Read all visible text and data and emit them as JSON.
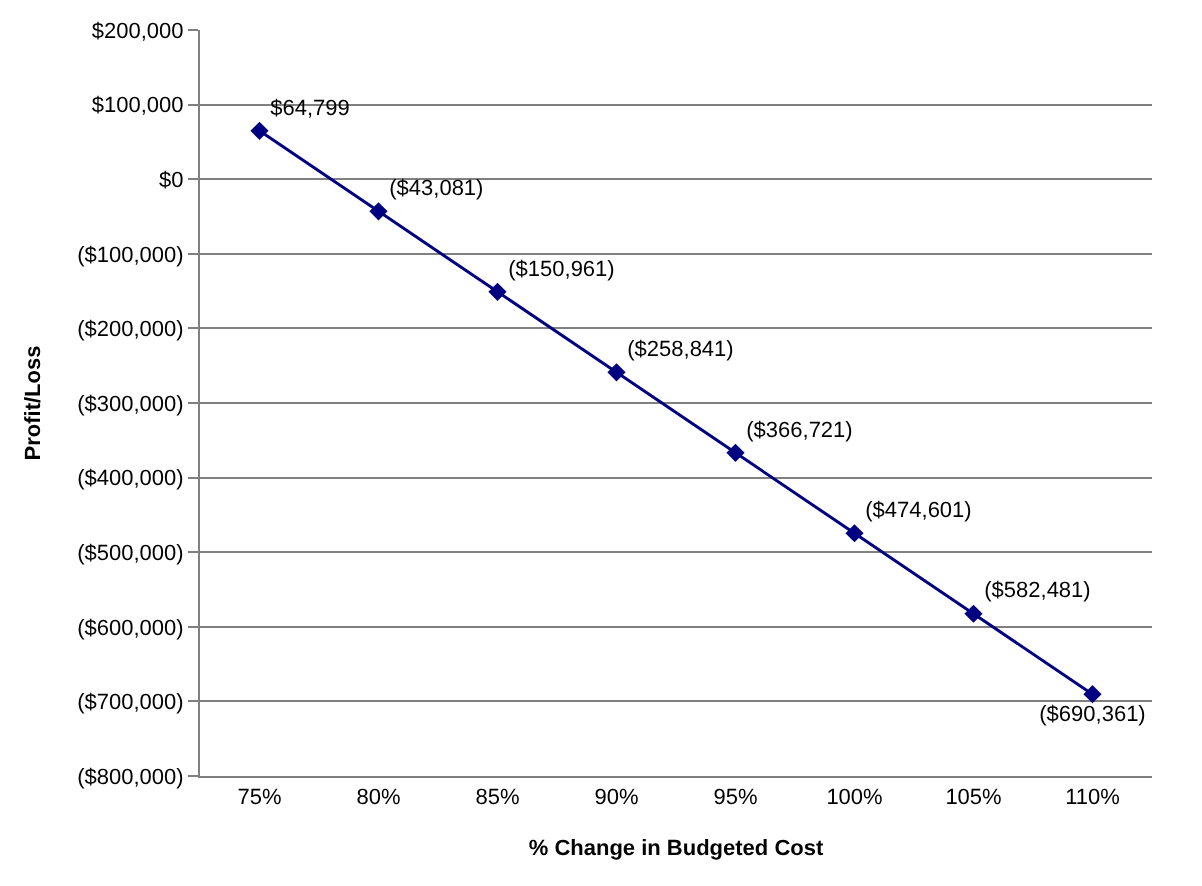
{
  "chart_data": {
    "type": "line",
    "xlabel": "% Change in Budgeted Cost",
    "ylabel": "Profit/Loss",
    "categories": [
      "75%",
      "80%",
      "85%",
      "90%",
      "95%",
      "100%",
      "105%",
      "110%"
    ],
    "series": [
      {
        "color": "#000080",
        "values": [
          64799,
          -43081,
          -150961,
          -258841,
          -366721,
          -474601,
          -582481,
          -690361
        ],
        "value_labels": [
          "$64,799",
          "($43,081)",
          "($150,961)",
          "($258,841)",
          "($366,721)",
          "($474,601)",
          "($582,481)",
          "($690,361)"
        ]
      }
    ],
    "ylim": [
      -800000,
      200000
    ],
    "yticks": [
      {
        "value": -800000,
        "label": "($800,000)"
      },
      {
        "value": -700000,
        "label": "($700,000)"
      },
      {
        "value": -600000,
        "label": "($600,000)"
      },
      {
        "value": -500000,
        "label": "($500,000)"
      },
      {
        "value": -400000,
        "label": "($400,000)"
      },
      {
        "value": -300000,
        "label": "($300,000)"
      },
      {
        "value": -200000,
        "label": "($200,000)"
      },
      {
        "value": -100000,
        "label": "($100,000)"
      },
      {
        "value": 0,
        "label": "$0"
      },
      {
        "value": 100000,
        "label": "$100,000"
      },
      {
        "value": 200000,
        "label": "$200,000"
      }
    ],
    "grid": "y",
    "legend": false,
    "marker": "diamond",
    "line_style": "solid"
  }
}
